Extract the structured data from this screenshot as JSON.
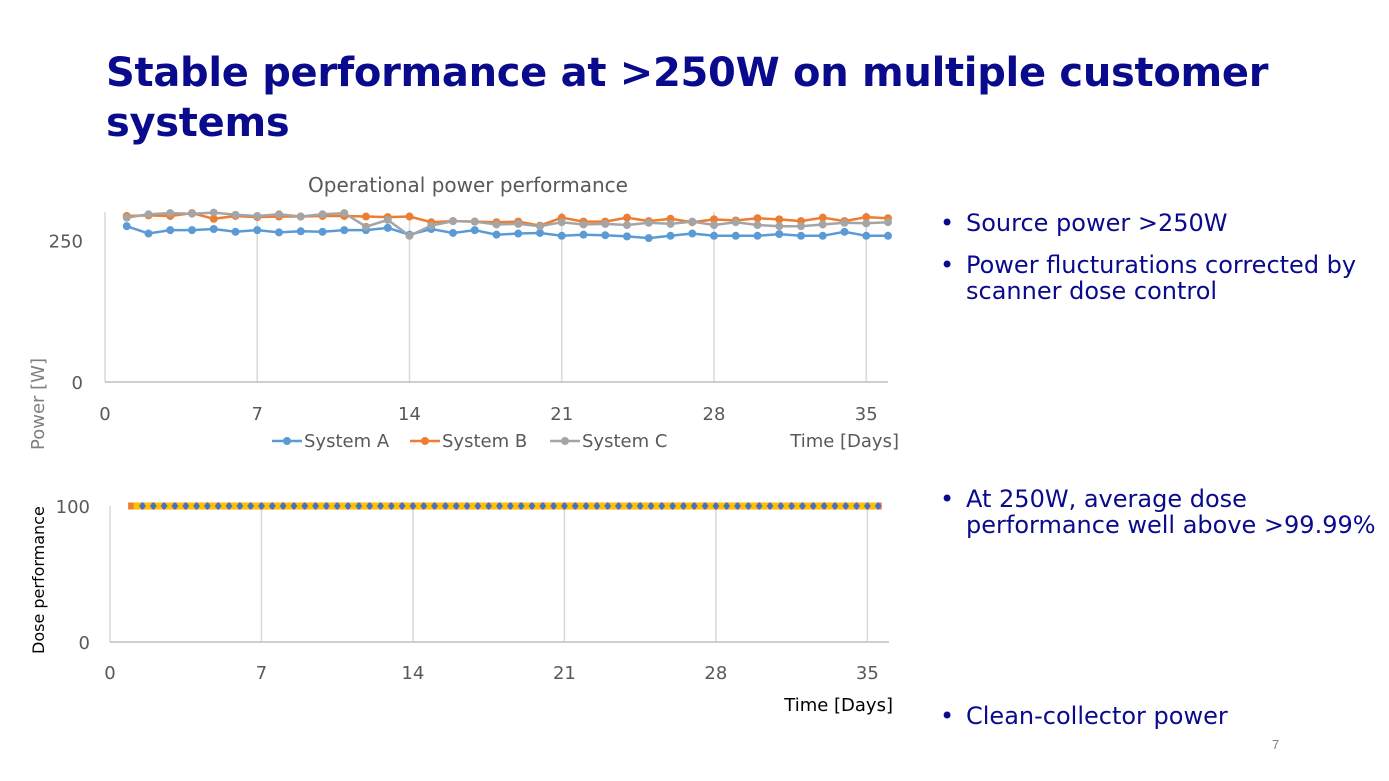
{
  "slide": {
    "title": "Stable performance at >250W on multiple customer systems",
    "page_number": "7",
    "bullets_top": [
      "Source power >250W",
      "Power flucturations corrected by scanner dose control"
    ],
    "bullets_mid": [
      "At 250W, average dose performance well above >99.99%"
    ],
    "bullets_bottom": [
      "Clean-collector power"
    ]
  },
  "chart_data": [
    {
      "type": "line",
      "title": "Operational power performance",
      "xlabel": "Time [Days]",
      "ylabel": "Power [W]",
      "xlim": [
        0,
        36
      ],
      "ylim": [
        0,
        300
      ],
      "xticks": [
        0,
        7,
        14,
        21,
        28,
        35
      ],
      "yticks": [
        0,
        250
      ],
      "grid": "vertical",
      "legend": "bottom",
      "x": [
        1,
        2,
        3,
        4,
        5,
        6,
        7,
        8,
        9,
        10,
        11,
        12,
        13,
        14,
        15,
        16,
        17,
        18,
        19,
        20,
        21,
        22,
        23,
        24,
        25,
        26,
        27,
        28,
        29,
        30,
        31,
        32,
        33,
        34,
        35,
        36
      ],
      "series": [
        {
          "name": "System A",
          "color": "#5b9bd5",
          "values": [
            275,
            262,
            268,
            268,
            270,
            265,
            268,
            264,
            266,
            265,
            268,
            268,
            272,
            260,
            270,
            263,
            268,
            260,
            262,
            263,
            258,
            260,
            259,
            257,
            254,
            258,
            262,
            258,
            258,
            258,
            261,
            258,
            258,
            265,
            258,
            258
          ]
        },
        {
          "name": "System B",
          "color": "#ed7d31",
          "values": [
            293,
            294,
            293,
            298,
            288,
            293,
            291,
            292,
            292,
            293,
            293,
            292,
            291,
            292,
            282,
            284,
            283,
            282,
            283,
            276,
            290,
            283,
            283,
            290,
            284,
            288,
            282,
            287,
            285,
            289,
            287,
            284,
            290,
            284,
            291,
            289
          ]
        },
        {
          "name": "System C",
          "color": "#a5a5a5",
          "values": [
            290,
            296,
            298,
            297,
            299,
            295,
            293,
            296,
            292,
            296,
            298,
            274,
            286,
            258,
            276,
            284,
            283,
            278,
            279,
            275,
            282,
            278,
            279,
            277,
            281,
            279,
            283,
            277,
            282,
            277,
            275,
            275,
            278,
            281,
            280,
            282
          ]
        }
      ]
    },
    {
      "type": "scatter",
      "xlabel": "Time [Days]",
      "ylabel": "Dose performance",
      "xlim": [
        0,
        36
      ],
      "ylim": [
        0,
        100
      ],
      "xticks": [
        0,
        7,
        14,
        21,
        28,
        35
      ],
      "yticks": [
        0,
        100
      ],
      "grid": "vertical",
      "series": [
        {
          "color": "#ed7d31",
          "start": 1,
          "end": 35.5,
          "step": 0.5,
          "value": 100
        },
        {
          "color": "#ffc000",
          "start": 1.25,
          "end": 35.5,
          "step": 0.5,
          "value": 100
        },
        {
          "color": "#4472c4",
          "start": 1.5,
          "end": 35.5,
          "step": 0.5,
          "value": 100
        }
      ]
    }
  ]
}
